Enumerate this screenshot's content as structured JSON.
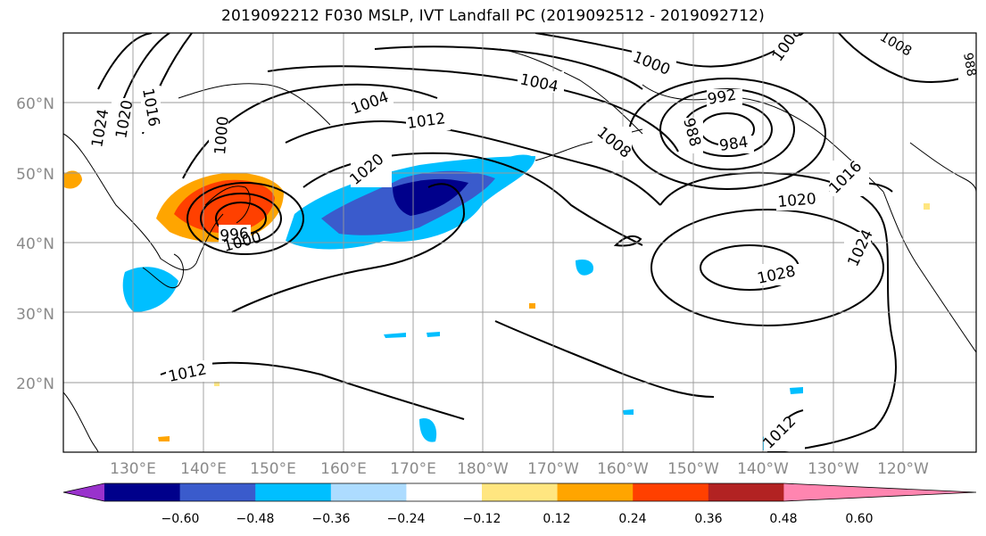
{
  "title": "2019092212 F030 MSLP, IVT Landfall PC (2019092512 - 2019092712)",
  "lat_labels": [
    "20°N",
    "30°N",
    "40°N",
    "50°N",
    "60°N"
  ],
  "lon_labels": [
    "130°E",
    "140°E",
    "150°E",
    "160°E",
    "170°E",
    "180°W",
    "170°W",
    "160°W",
    "150°W",
    "140°W",
    "130°W",
    "120°W"
  ],
  "colorbar": {
    "ticks": [
      "−0.60",
      "−0.48",
      "−0.36",
      "−0.24",
      "−0.12",
      "0.12",
      "0.24",
      "0.36",
      "0.48",
      "0.60"
    ],
    "colors": [
      "#9932CC",
      "#00008B",
      "#3A5BCC",
      "#00BFFF",
      "#ADDCFF",
      "#FFFFFF",
      "#FFE680",
      "#FFA500",
      "#FF4000",
      "#B22222",
      "#FF85B0"
    ]
  },
  "isobar_labels": [
    "1024",
    "1020",
    "1016",
    "1000",
    "1004",
    "1012",
    "1004",
    "1000",
    "1008",
    "992",
    "988",
    "984",
    "1008",
    "1020",
    "1020",
    "1016",
    "1024",
    "1028",
    "1012",
    "1012",
    "996",
    "1000",
    "988",
    "1008",
    "1004"
  ],
  "shading": {
    "positive_regions": [
      "northern Japan / Sea of Okhotsk",
      "western edge near 125°E 48°N"
    ],
    "negative_regions": [
      "North Pacific 160°E–180°",
      "southern Japan",
      "near Hawaii",
      "near 160°W 35°N"
    ]
  }
}
